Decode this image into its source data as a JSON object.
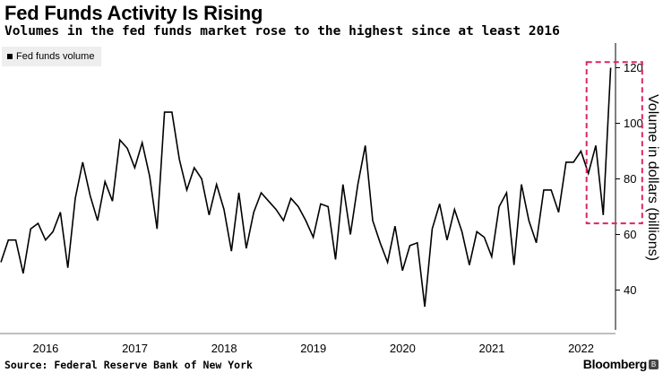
{
  "header": {
    "title": "Fed Funds Activity Is Rising",
    "subtitle": "Volumes in the fed funds market rose to the highest since at least 2016"
  },
  "legend": {
    "label": "Fed funds volume"
  },
  "footer": {
    "source": "Source: Federal Reserve Bank of New York",
    "brand": "Bloomberg",
    "brand_mark": "B"
  },
  "colors": {
    "line": "#000000",
    "highlight": "#e0245e",
    "axis": "#000000",
    "legend_bg": "#eeeeee"
  },
  "chart_data": {
    "type": "line",
    "title": "Fed Funds Activity Is Rising",
    "ylabel": "Volume in dollars (billions)",
    "xlabel": "",
    "ylim": [
      25,
      125
    ],
    "yticks": [
      40,
      60,
      80,
      100,
      120
    ],
    "year_labels": [
      "2016",
      "2017",
      "2018",
      "2019",
      "2020",
      "2021",
      "2022"
    ],
    "x_start": "2015-12",
    "frequency": "monthly",
    "highlight": {
      "from_index": 79,
      "to_index": 86,
      "ymin": 64,
      "ymax": 122
    },
    "series": [
      {
        "name": "Fed funds volume",
        "values": [
          50,
          58,
          58,
          46,
          62,
          64,
          58,
          61,
          68,
          48,
          73,
          86,
          74,
          65,
          79,
          72,
          94,
          91,
          84,
          93,
          81,
          62,
          104,
          104,
          87,
          76,
          84,
          80,
          67,
          78,
          69,
          54,
          75,
          55,
          68,
          75,
          72,
          69,
          65,
          73,
          70,
          65,
          59,
          71,
          70,
          51,
          78,
          60,
          78,
          92,
          65,
          57,
          50,
          63,
          47,
          56,
          57,
          34,
          62,
          71,
          58,
          69,
          61,
          49,
          61,
          59,
          52,
          70,
          75,
          49,
          78,
          65,
          57,
          76,
          76,
          68,
          86,
          86,
          90,
          82,
          92,
          67,
          120
        ]
      }
    ]
  }
}
